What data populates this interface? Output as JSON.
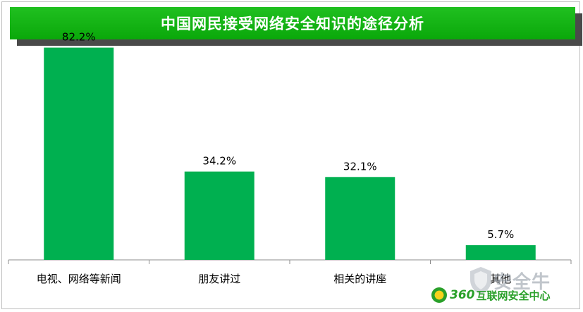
{
  "title": "中国网民接受网络安全知识的途径分析",
  "chart_data": {
    "type": "bar",
    "categories": [
      "电视、网络等新闻",
      "朋友讲过",
      "相关的讲座",
      "其他"
    ],
    "values": [
      82.2,
      34.2,
      32.1,
      5.7
    ],
    "value_labels": [
      "82.2%",
      "34.2%",
      "32.1%",
      "5.7%"
    ],
    "title": "中国网民接受网络安全知识的途径分析",
    "xlabel": "",
    "ylabel": "",
    "ylim": [
      0,
      90
    ],
    "grid": false,
    "bar_color": "#00b050"
  },
  "watermark": {
    "text": "安全牛",
    "brand_number": "360",
    "brand_text": "互联网安全中心"
  },
  "colors": {
    "title_bar": "#11b011",
    "bar": "#00b050"
  }
}
